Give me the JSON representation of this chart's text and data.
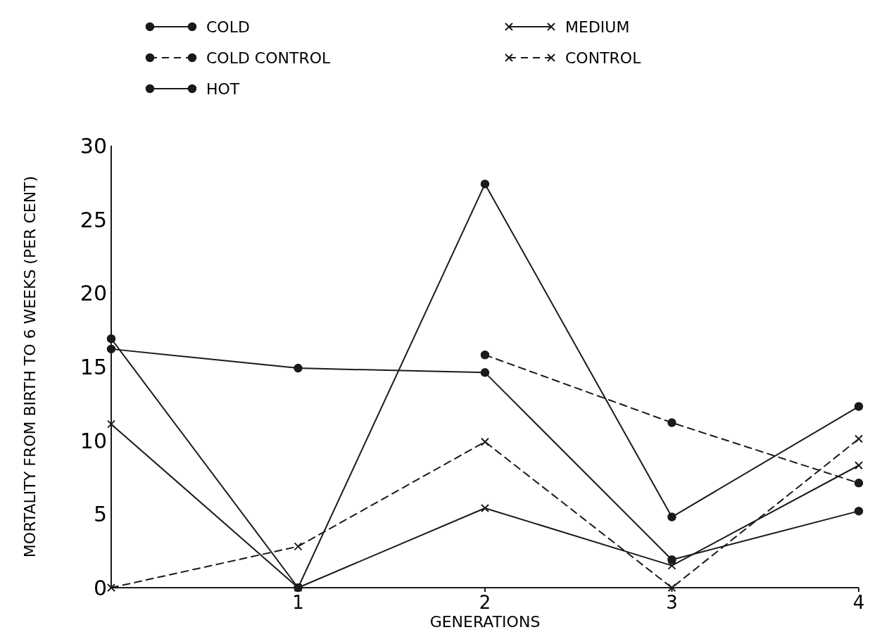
{
  "chart_data": {
    "type": "line",
    "xlabel": "GENERATIONS",
    "ylabel": "MORTALITY FROM BIRTH TO 6 WEEKS (PER CENT)",
    "x": [
      0,
      1,
      2,
      3,
      4
    ],
    "xlim": [
      0,
      4
    ],
    "xticks": [
      1,
      2,
      3,
      4
    ],
    "ylim": [
      0,
      30
    ],
    "yticks": [
      0,
      5,
      10,
      15,
      20,
      25,
      30
    ],
    "grid": false,
    "legend": "top",
    "series": [
      {
        "name": "COLD",
        "color": "#1a1a1a",
        "values": [
          16.9,
          0,
          27.4,
          4.8,
          12.3
        ],
        "marker": "circle",
        "line_style": "solid"
      },
      {
        "name": "COLD CONTROL",
        "color": "#1a1a1a",
        "values": [
          null,
          null,
          15.8,
          11.2,
          7.1
        ],
        "marker": "circle",
        "line_style": "dashed"
      },
      {
        "name": "HOT",
        "color": "#1a1a1a",
        "values": [
          16.2,
          14.9,
          14.6,
          1.9,
          5.2
        ],
        "marker": "circle",
        "line_style": "solid"
      },
      {
        "name": "MEDIUM",
        "color": "#1a1a1a",
        "values": [
          11.1,
          0,
          5.4,
          1.5,
          8.3
        ],
        "marker": "cross",
        "line_style": "solid"
      },
      {
        "name": "CONTROL",
        "color": "#1a1a1a",
        "values": [
          0,
          2.8,
          9.9,
          0,
          10.1
        ],
        "marker": "cross",
        "line_style": "dashed"
      }
    ]
  }
}
